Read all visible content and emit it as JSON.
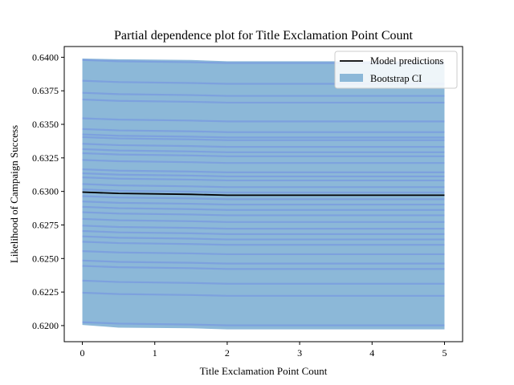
{
  "chart_data": {
    "type": "line",
    "title": "Partial dependence plot for Title Exclamation Point Count",
    "xlabel": "Title Exclamation Point Count",
    "ylabel": "Likelihood of Campaign Success",
    "xlim": [
      -0.25,
      5.25
    ],
    "ylim": [
      0.6188,
      0.6408
    ],
    "xticks": [
      0,
      1,
      2,
      3,
      4,
      5
    ],
    "yticks": [
      0.62,
      0.6225,
      0.625,
      0.6275,
      0.63,
      0.6325,
      0.635,
      0.6375,
      0.64
    ],
    "x": [
      0,
      0.5,
      1.5,
      2,
      5
    ],
    "model_predictions": {
      "name": "Model predictions",
      "color": "#000000",
      "values": [
        0.62995,
        0.62985,
        0.62978,
        0.62972,
        0.62972
      ]
    },
    "bootstrap_ci": {
      "name": "Bootstrap CI",
      "color": "#8cb8d8",
      "lower": [
        0.62005,
        0.61985,
        0.6198,
        0.61972,
        0.61972
      ],
      "upper": [
        0.6399,
        0.63985,
        0.6398,
        0.6397,
        0.6397
      ]
    },
    "bootstrap_lines": {
      "color": "#6b84e6",
      "offsets": [
        0.00985,
        0.0083,
        0.0074,
        0.0069,
        0.0055,
        0.0047,
        0.0043,
        0.0041,
        0.0036,
        0.0032,
        0.0029,
        0.0024,
        0.0017,
        0.0014,
        0.0011,
        0.0006,
        0.0002,
        -0.0003,
        -0.0007,
        -0.0011,
        -0.0015,
        -0.002,
        -0.0025,
        -0.0029,
        -0.0033,
        -0.0037,
        -0.0044,
        -0.0051,
        -0.0055,
        -0.0066,
        -0.0075,
        -0.0097
      ]
    },
    "legend_position": "top-right",
    "grid": false
  }
}
